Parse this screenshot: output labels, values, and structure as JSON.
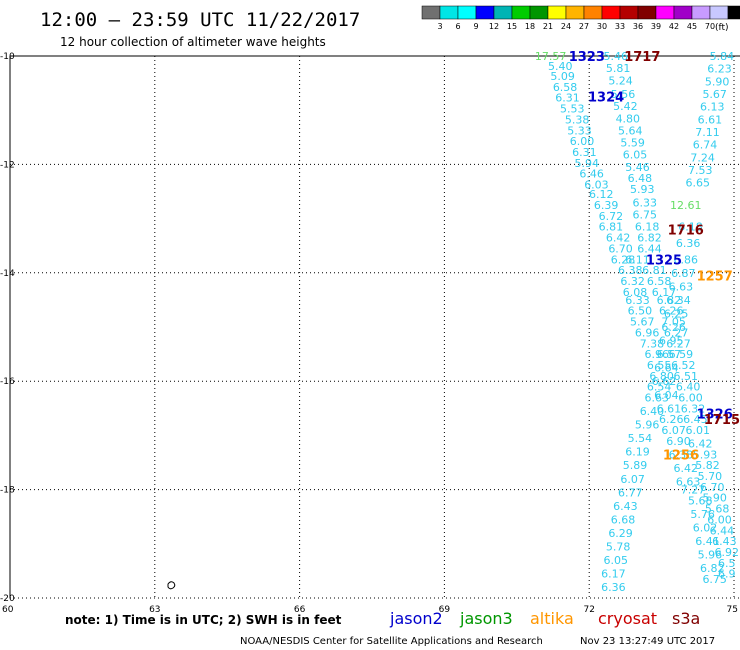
{
  "header": {
    "title": "12:00 — 23:59 UTC 11/22/2017",
    "subtitle": "12 hour collection of altimeter wave heights"
  },
  "color_scale": {
    "colors": [
      "#707070",
      "#00e6e6",
      "#00ffff",
      "#0000ff",
      "#00b4b4",
      "#00cc00",
      "#009600",
      "#ffff00",
      "#ffb400",
      "#ff8200",
      "#ff0000",
      "#b40000",
      "#800000",
      "#ff00ff",
      "#a000c8",
      "#c89bff",
      "#c8c8ff",
      "#000000"
    ],
    "labels": [
      "3",
      "6",
      "9",
      "12",
      "15",
      "18",
      "21",
      "24",
      "27",
      "30",
      "33",
      "36",
      "39",
      "42",
      "45",
      "70"
    ],
    "unit": "(ft)"
  },
  "footer": {
    "note": "note: 1) Time is in UTC; 2) SWH is in feet",
    "credit": "NOAA/NESDIS Center for Satellite Applications and Research",
    "timestamp": "Nov 23 13:27:49 UTC 2017"
  },
  "chart_data": {
    "type": "scatter",
    "xlim": [
      60,
      75
    ],
    "ylim": [
      -20,
      -10
    ],
    "xticks": [
      60,
      63,
      66,
      69,
      72,
      75
    ],
    "yticks": [
      -10,
      -12,
      -14,
      -16,
      -18,
      -20
    ],
    "grid": true,
    "legend": [
      {
        "name": "jason2",
        "color": "#0000cc"
      },
      {
        "name": "jason3",
        "color": "#009600"
      },
      {
        "name": "altika",
        "color": "#ff9600"
      },
      {
        "name": "cryosat",
        "color": "#c80000"
      },
      {
        "name": "s3a",
        "color": "#800000"
      }
    ],
    "time_labels": [
      {
        "text": "1323",
        "x": 71.95,
        "y": -10.0,
        "color": "#0000cc"
      },
      {
        "text": "1717",
        "x": 73.1,
        "y": -10.0,
        "color": "#800000"
      },
      {
        "text": "1324",
        "x": 72.35,
        "y": -10.75,
        "color": "#0000cc"
      },
      {
        "text": "1716",
        "x": 74.0,
        "y": -13.2,
        "color": "#800000"
      },
      {
        "text": "1325",
        "x": 73.55,
        "y": -13.75,
        "color": "#0000cc"
      },
      {
        "text": "1257",
        "x": 74.6,
        "y": -14.05,
        "color": "#ff9600"
      },
      {
        "text": "1326",
        "x": 74.6,
        "y": -16.6,
        "color": "#0000cc"
      },
      {
        "text": "1715",
        "x": 74.75,
        "y": -16.7,
        "color": "#800000"
      },
      {
        "text": "1256",
        "x": 73.9,
        "y": -17.35,
        "color": "#ff9600"
      }
    ],
    "special_values": [
      {
        "text": "17.57",
        "x": 71.2,
        "y": -10.0,
        "color": "#66dd66"
      },
      {
        "text": "12.61",
        "x": 74.0,
        "y": -12.75,
        "color": "#66dd66"
      }
    ],
    "series": [
      {
        "color": "#33ccee",
        "points": [
          {
            "x": 71.4,
            "y": -10.18,
            "v": "5.40"
          },
          {
            "x": 71.45,
            "y": -10.37,
            "v": "5.09"
          },
          {
            "x": 71.5,
            "y": -10.57,
            "v": "6.58"
          },
          {
            "x": 71.55,
            "y": -10.77,
            "v": "6.31"
          },
          {
            "x": 71.65,
            "y": -10.97,
            "v": "5.53"
          },
          {
            "x": 71.75,
            "y": -11.17,
            "v": "5.38"
          },
          {
            "x": 71.8,
            "y": -11.37,
            "v": "5.33"
          },
          {
            "x": 71.85,
            "y": -11.57,
            "v": "6.00"
          },
          {
            "x": 71.9,
            "y": -11.77,
            "v": "6.31"
          },
          {
            "x": 71.95,
            "y": -11.97,
            "v": "5.94"
          },
          {
            "x": 72.05,
            "y": -12.17,
            "v": "6.46"
          },
          {
            "x": 72.15,
            "y": -12.37,
            "v": "6.03"
          },
          {
            "x": 72.25,
            "y": -12.55,
            "v": "6.12"
          },
          {
            "x": 72.35,
            "y": -12.75,
            "v": "6.39"
          },
          {
            "x": 72.45,
            "y": -12.95,
            "v": "6.72"
          },
          {
            "x": 72.45,
            "y": -13.15,
            "v": "6.81"
          },
          {
            "x": 72.6,
            "y": -13.35,
            "v": "6.42"
          },
          {
            "x": 72.65,
            "y": -13.55,
            "v": "6.70"
          },
          {
            "x": 72.7,
            "y": -13.75,
            "v": "6.28"
          },
          {
            "x": 72.85,
            "y": -13.95,
            "v": "6.38"
          },
          {
            "x": 72.9,
            "y": -14.15,
            "v": "6.32"
          },
          {
            "x": 72.95,
            "y": -14.35,
            "v": "6.08"
          },
          {
            "x": 73.0,
            "y": -14.5,
            "v": "6.33"
          },
          {
            "x": 73.05,
            "y": -14.7,
            "v": "6.50"
          },
          {
            "x": 73.1,
            "y": -14.9,
            "v": "5.67"
          },
          {
            "x": 73.2,
            "y": -15.1,
            "v": "6.96"
          },
          {
            "x": 73.3,
            "y": -15.3,
            "v": "7.38"
          },
          {
            "x": 73.4,
            "y": -15.5,
            "v": "6.96"
          },
          {
            "x": 73.45,
            "y": -15.7,
            "v": "6.55"
          },
          {
            "x": 73.5,
            "y": -15.9,
            "v": "6.80"
          },
          {
            "x": 73.45,
            "y": -16.1,
            "v": "6.54"
          },
          {
            "x": 73.4,
            "y": -16.3,
            "v": "6.63"
          },
          {
            "x": 73.3,
            "y": -16.55,
            "v": "6.40"
          },
          {
            "x": 73.2,
            "y": -16.8,
            "v": "5.96"
          },
          {
            "x": 73.05,
            "y": -17.05,
            "v": "5.54"
          },
          {
            "x": 73.0,
            "y": -17.3,
            "v": "6.19"
          },
          {
            "x": 72.95,
            "y": -17.55,
            "v": "5.89"
          },
          {
            "x": 72.9,
            "y": -17.8,
            "v": "6.07"
          },
          {
            "x": 72.85,
            "y": -18.05,
            "v": "6.77"
          },
          {
            "x": 72.75,
            "y": -18.3,
            "v": "6.43"
          },
          {
            "x": 72.7,
            "y": -18.55,
            "v": "6.68"
          },
          {
            "x": 72.65,
            "y": -18.8,
            "v": "6.29"
          },
          {
            "x": 72.6,
            "y": -19.05,
            "v": "5.78"
          },
          {
            "x": 72.55,
            "y": -19.3,
            "v": "6.05"
          },
          {
            "x": 72.5,
            "y": -19.55,
            "v": "6.17"
          },
          {
            "x": 72.5,
            "y": -19.8,
            "v": "6.36"
          }
        ]
      },
      {
        "color": "#33ccee",
        "points": [
          {
            "x": 72.55,
            "y": -10.0,
            "v": "5.46"
          },
          {
            "x": 72.6,
            "y": -10.22,
            "v": "5.81"
          },
          {
            "x": 72.65,
            "y": -10.45,
            "v": "5.24"
          },
          {
            "x": 72.7,
            "y": -10.7,
            "v": "5.56"
          },
          {
            "x": 72.75,
            "y": -10.92,
            "v": "5.42"
          },
          {
            "x": 72.8,
            "y": -11.15,
            "v": "4.80"
          },
          {
            "x": 72.85,
            "y": -11.37,
            "v": "5.64"
          },
          {
            "x": 72.9,
            "y": -11.6,
            "v": "5.59"
          },
          {
            "x": 72.95,
            "y": -11.82,
            "v": "6.05"
          },
          {
            "x": 73.0,
            "y": -12.05,
            "v": "5.46"
          },
          {
            "x": 73.05,
            "y": -12.25,
            "v": "6.48"
          },
          {
            "x": 73.1,
            "y": -12.45,
            "v": "5.93"
          },
          {
            "x": 73.15,
            "y": -12.7,
            "v": "6.33"
          },
          {
            "x": 73.15,
            "y": -12.92,
            "v": "6.75"
          },
          {
            "x": 73.2,
            "y": -13.15,
            "v": "6.18"
          },
          {
            "x": 73.25,
            "y": -13.35,
            "v": "6.82"
          },
          {
            "x": 73.25,
            "y": -13.55,
            "v": "6.44"
          },
          {
            "x": 73.0,
            "y": -13.75,
            "v": "6.11"
          },
          {
            "x": 73.35,
            "y": -13.95,
            "v": "6.81"
          },
          {
            "x": 73.45,
            "y": -14.15,
            "v": "6.58"
          },
          {
            "x": 73.55,
            "y": -14.35,
            "v": "6.17"
          },
          {
            "x": 73.65,
            "y": -14.5,
            "v": "6.82"
          },
          {
            "x": 73.7,
            "y": -14.7,
            "v": "6.26"
          },
          {
            "x": 73.75,
            "y": -14.9,
            "v": "7.05"
          },
          {
            "x": 73.8,
            "y": -15.1,
            "v": "6.27"
          },
          {
            "x": 73.85,
            "y": -15.3,
            "v": "6.27"
          },
          {
            "x": 73.9,
            "y": -15.5,
            "v": "6.59"
          },
          {
            "x": 73.95,
            "y": -15.7,
            "v": "6.52"
          },
          {
            "x": 74.0,
            "y": -15.9,
            "v": "6.51"
          },
          {
            "x": 74.05,
            "y": -16.1,
            "v": "6.40"
          },
          {
            "x": 74.1,
            "y": -16.3,
            "v": "6.00"
          },
          {
            "x": 74.15,
            "y": -16.5,
            "v": "6.32"
          },
          {
            "x": 74.2,
            "y": -16.7,
            "v": "6.45"
          },
          {
            "x": 74.25,
            "y": -16.9,
            "v": "6.01"
          },
          {
            "x": 74.3,
            "y": -17.15,
            "v": "6.42"
          },
          {
            "x": 74.4,
            "y": -17.35,
            "v": "5.93"
          },
          {
            "x": 74.45,
            "y": -17.55,
            "v": "5.82"
          },
          {
            "x": 74.5,
            "y": -17.75,
            "v": "5.70"
          },
          {
            "x": 74.55,
            "y": -17.95,
            "v": "6.70"
          },
          {
            "x": 74.6,
            "y": -18.15,
            "v": "5.90"
          },
          {
            "x": 74.65,
            "y": -18.35,
            "v": "5.68"
          },
          {
            "x": 74.7,
            "y": -18.55,
            "v": "6.00"
          },
          {
            "x": 74.75,
            "y": -18.75,
            "v": "6.44"
          },
          {
            "x": 74.8,
            "y": -18.95,
            "v": "6.43"
          },
          {
            "x": 74.85,
            "y": -19.15,
            "v": "6.92"
          },
          {
            "x": 74.85,
            "y": -19.35,
            "v": "6.5"
          },
          {
            "x": 74.85,
            "y": -19.55,
            "v": "6.9"
          }
        ]
      },
      {
        "color": "#33ccee",
        "points": [
          {
            "x": 74.75,
            "y": -10.0,
            "v": "5.84"
          },
          {
            "x": 74.7,
            "y": -10.23,
            "v": "6.23"
          },
          {
            "x": 74.65,
            "y": -10.47,
            "v": "5.90"
          },
          {
            "x": 74.6,
            "y": -10.7,
            "v": "5.67"
          },
          {
            "x": 74.55,
            "y": -10.93,
            "v": "6.13"
          },
          {
            "x": 74.5,
            "y": -11.17,
            "v": "6.61"
          },
          {
            "x": 74.45,
            "y": -11.4,
            "v": "7.11"
          },
          {
            "x": 74.4,
            "y": -11.63,
            "v": "6.74"
          },
          {
            "x": 74.35,
            "y": -11.87,
            "v": "7.24"
          },
          {
            "x": 74.3,
            "y": -12.1,
            "v": "7.53"
          },
          {
            "x": 74.25,
            "y": -12.33,
            "v": "6.65"
          },
          {
            "x": 74.1,
            "y": -13.15,
            "v": "6.18"
          },
          {
            "x": 74.05,
            "y": -13.45,
            "v": "6.36"
          },
          {
            "x": 74.0,
            "y": -13.75,
            "v": "6.86"
          },
          {
            "x": 73.95,
            "y": -14.0,
            "v": "6.87"
          },
          {
            "x": 73.9,
            "y": -14.25,
            "v": "6.63"
          },
          {
            "x": 73.85,
            "y": -14.5,
            "v": "6.34"
          },
          {
            "x": 73.8,
            "y": -14.75,
            "v": "6.25"
          },
          {
            "x": 73.75,
            "y": -15.0,
            "v": "6.26"
          },
          {
            "x": 73.7,
            "y": -15.25,
            "v": "6.95"
          },
          {
            "x": 73.65,
            "y": -15.5,
            "v": "6.57"
          },
          {
            "x": 73.6,
            "y": -15.75,
            "v": "6.64"
          },
          {
            "x": 73.55,
            "y": -16.0,
            "v": "6.62"
          },
          {
            "x": 73.6,
            "y": -16.25,
            "v": "6.04"
          },
          {
            "x": 73.65,
            "y": -16.5,
            "v": "6.61"
          },
          {
            "x": 73.7,
            "y": -16.7,
            "v": "6.26"
          },
          {
            "x": 73.75,
            "y": -16.9,
            "v": "6.07"
          },
          {
            "x": 73.85,
            "y": -17.1,
            "v": "6.90"
          },
          {
            "x": 73.9,
            "y": -17.35,
            "v": "6.38"
          },
          {
            "x": 74.0,
            "y": -17.6,
            "v": "6.42"
          },
          {
            "x": 74.05,
            "y": -17.85,
            "v": "6.63"
          },
          {
            "x": 74.15,
            "y": -18.0,
            "v": "7.27"
          },
          {
            "x": 74.3,
            "y": -18.2,
            "v": "5.68"
          },
          {
            "x": 74.35,
            "y": -18.45,
            "v": "5.76"
          },
          {
            "x": 74.4,
            "y": -18.7,
            "v": "6.02"
          },
          {
            "x": 74.45,
            "y": -18.95,
            "v": "6.41"
          },
          {
            "x": 74.5,
            "y": -19.2,
            "v": "5.96"
          },
          {
            "x": 74.55,
            "y": -19.45,
            "v": "6.82"
          },
          {
            "x": 74.6,
            "y": -19.65,
            "v": "6.75"
          }
        ]
      }
    ]
  }
}
